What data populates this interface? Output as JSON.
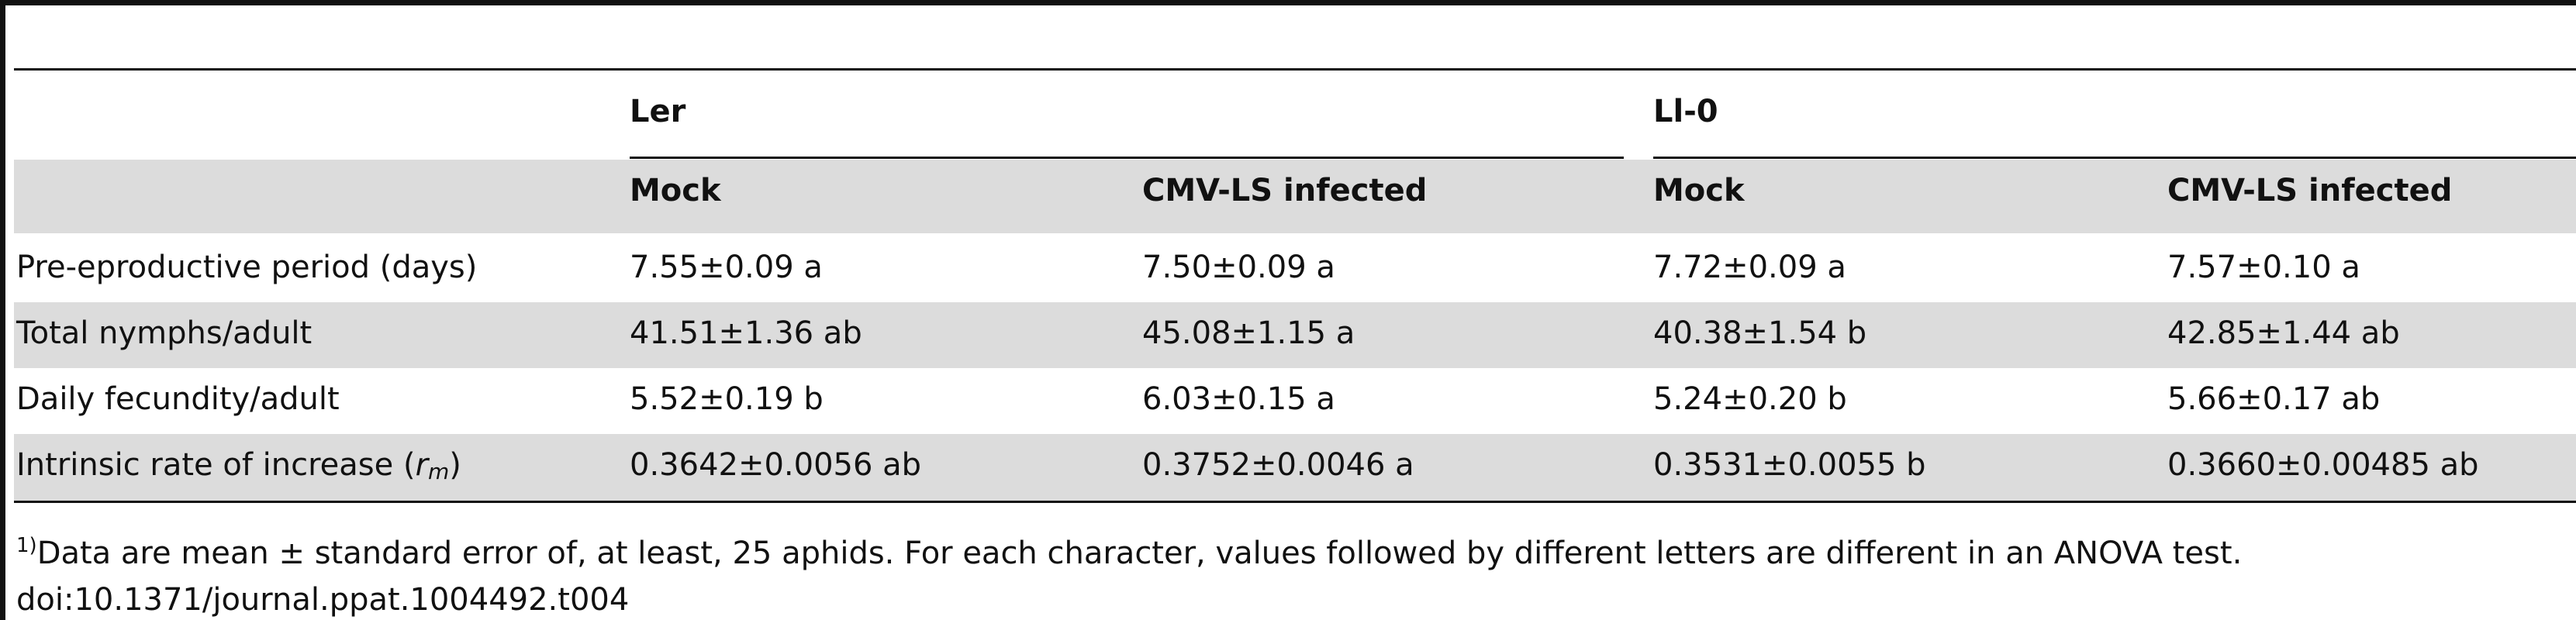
{
  "table": {
    "groups": [
      "Ler",
      "Ll-0"
    ],
    "subheaders": [
      "Mock",
      "CMV-LS infected",
      "Mock",
      "CMV-LS infected"
    ],
    "rows": [
      {
        "label": "Pre-eproductive period (days)",
        "cells": [
          "7.55±0.09 a",
          "7.50±0.09 a",
          "7.72±0.09 a",
          "7.57±0.10 a"
        ]
      },
      {
        "label": "Total nymphs/adult",
        "cells": [
          "41.51±1.36 ab",
          "45.08±1.15 a",
          "40.38±1.54 b",
          "42.85±1.44 ab"
        ]
      },
      {
        "label": "Daily fecundity/adult",
        "cells": [
          "5.52±0.19 b",
          "6.03±0.15 a",
          "5.24±0.20 b",
          "5.66±0.17 ab"
        ]
      },
      {
        "label": "Intrinsic rate of increase (",
        "label_italic": "r",
        "label_sub": "m",
        "label_end": ")",
        "cells": [
          "0.3642±0.0056 ab",
          "0.3752±0.0046 a",
          "0.3531±0.0055 b",
          "0.3660±0.00485 ab"
        ]
      }
    ]
  },
  "footnote": {
    "mark": "1)",
    "text": "Data are mean ± standard error of, at least, 25 aphids. For each character, values followed by different letters are different in an ANOVA test."
  },
  "doi": "doi:10.1371/journal.ppat.1004492.t004"
}
